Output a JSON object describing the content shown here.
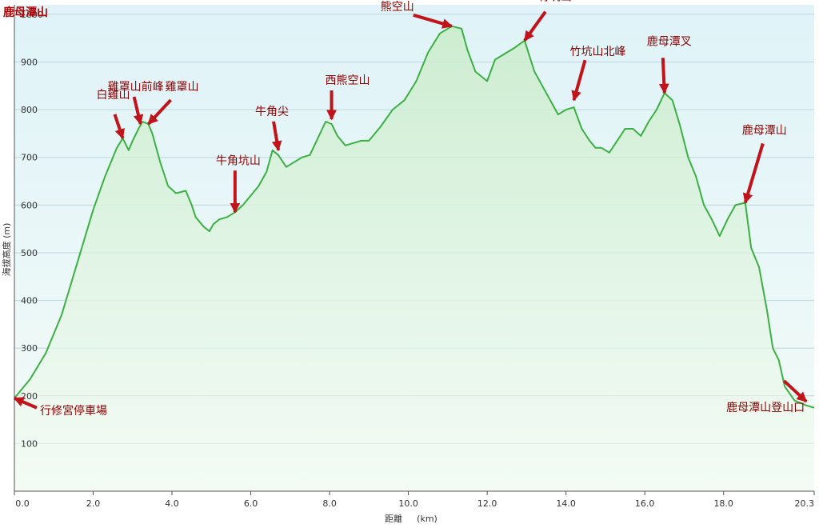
{
  "chart_data": {
    "type": "area",
    "title": "鹿母潭山",
    "ylabel": "海拔高度 (m)",
    "xlabel": "距離",
    "xunit": "(km)",
    "xlim": [
      0,
      20.3
    ],
    "ylim": [
      0,
      1020
    ],
    "xticks": [
      "0.0",
      "2.0",
      "4.0",
      "6.0",
      "8.0",
      "10.0",
      "12.0",
      "14.0",
      "16.0",
      "18.0",
      "20.3"
    ],
    "xtick_values": [
      0,
      2,
      4,
      6,
      8,
      10,
      12,
      14,
      16,
      18,
      20.3
    ],
    "yticks": [
      "100",
      "200",
      "300",
      "400",
      "500",
      "600",
      "700",
      "800",
      "900",
      "1000"
    ],
    "ytick_values": [
      100,
      200,
      300,
      400,
      500,
      600,
      700,
      800,
      900,
      1000
    ],
    "grid": "horizontal",
    "colors": {
      "line": "#3cb043",
      "arrow": "#c0141a",
      "label": "#8b0000",
      "bg_top": "#dff3f8",
      "bg_bottom": "#f2fbf2"
    },
    "series": [
      {
        "x": [
          0.0,
          0.15,
          0.4,
          0.8,
          1.2,
          1.6,
          2.0,
          2.3,
          2.6,
          2.75,
          2.9,
          3.0,
          3.15,
          3.25,
          3.4,
          3.5,
          3.7,
          3.9,
          4.1,
          4.35,
          4.5,
          4.6,
          4.8,
          4.95,
          5.05,
          5.2,
          5.4,
          5.6,
          5.8,
          6.0,
          6.2,
          6.4,
          6.55,
          6.7,
          6.9,
          7.1,
          7.3,
          7.5,
          7.7,
          7.9,
          8.05,
          8.2,
          8.4,
          8.6,
          8.8,
          9.0,
          9.3,
          9.6,
          9.9,
          10.2,
          10.5,
          10.8,
          11.1,
          11.35,
          11.5,
          11.7,
          12.0,
          12.2,
          12.4,
          12.7,
          12.95,
          13.2,
          13.5,
          13.8,
          14.0,
          14.2,
          14.4,
          14.6,
          14.75,
          14.9,
          15.1,
          15.3,
          15.5,
          15.7,
          15.9,
          16.1,
          16.3,
          16.5,
          16.7,
          16.9,
          17.1,
          17.3,
          17.5,
          17.7,
          17.9,
          18.1,
          18.3,
          18.55,
          18.7,
          18.9,
          19.1,
          19.25,
          19.4,
          19.55,
          19.8,
          20.1,
          20.3
        ],
        "y": [
          195,
          210,
          235,
          290,
          370,
          480,
          590,
          660,
          720,
          740,
          715,
          735,
          760,
          775,
          770,
          750,
          690,
          640,
          625,
          630,
          600,
          575,
          555,
          545,
          560,
          570,
          575,
          585,
          600,
          620,
          640,
          670,
          715,
          705,
          680,
          690,
          700,
          705,
          740,
          775,
          770,
          745,
          725,
          730,
          735,
          735,
          765,
          800,
          820,
          860,
          920,
          960,
          975,
          970,
          925,
          880,
          860,
          905,
          915,
          930,
          945,
          880,
          835,
          790,
          800,
          805,
          760,
          735,
          720,
          720,
          710,
          735,
          760,
          760,
          745,
          775,
          800,
          835,
          820,
          765,
          700,
          660,
          600,
          570,
          535,
          570,
          600,
          605,
          510,
          470,
          380,
          300,
          275,
          220,
          190,
          180,
          175
        ]
      }
    ],
    "annotations": [
      {
        "text": "鹿母潭山登山口",
        "x": 20.1,
        "y": 188
      },
      {
        "text": "行修宮停車場",
        "x": 0.0,
        "y": 195
      },
      {
        "text": "白雞山",
        "x": 2.75,
        "y": 740
      },
      {
        "text": "雞罩山前峰",
        "x": 3.2,
        "y": 770
      },
      {
        "text": "雞罩山",
        "x": 3.4,
        "y": 770
      },
      {
        "text": "牛角坑山",
        "x": 5.6,
        "y": 585
      },
      {
        "text": "牛角尖",
        "x": 6.7,
        "y": 715
      },
      {
        "text": "西熊空山",
        "x": 8.05,
        "y": 780
      },
      {
        "text": "熊空山",
        "x": 11.1,
        "y": 975
      },
      {
        "text": "竹坑山",
        "x": 12.95,
        "y": 945
      },
      {
        "text": "竹坑山北峰",
        "x": 14.2,
        "y": 820
      },
      {
        "text": "鹿母潭叉",
        "x": 16.5,
        "y": 835
      },
      {
        "text": "鹿母潭山",
        "x": 18.55,
        "y": 605
      }
    ]
  }
}
